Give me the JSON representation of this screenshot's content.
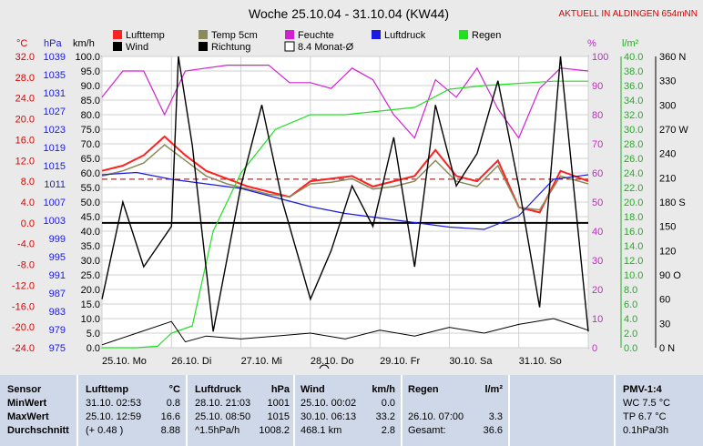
{
  "header": {
    "title": "Woche 25.10.04 - 31.10.04 (KW44)",
    "live": "AKTUELL IN ALDINGEN 654mNN"
  },
  "colors": {
    "lufttemp": "#ff2020",
    "temp5cm": "#8a8a5a",
    "feuchte": "#d020d0",
    "luftdruck": "#1a1ae0",
    "regen": "#20e020",
    "wind": "#000000",
    "richtung": "#000000",
    "monat": "#8b0000"
  },
  "chart_data": {
    "type": "line",
    "title": "Woche 25.10.04 - 31.10.04 (KW44)",
    "x_days": [
      "25.10. Mo",
      "26.10. Di",
      "27.10. Mi",
      "28.10. Do",
      "29.10. Fr",
      "30.10. Sa",
      "31.10. So"
    ],
    "legend": [
      "Lufttemp",
      "Wind",
      "Temp 5cm",
      "Richtung",
      "Feuchte",
      "8.4 Monat-Ø",
      "Luftdruck",
      "Regen"
    ],
    "axes": {
      "temp": {
        "unit": "°C",
        "range": [
          -24,
          32
        ],
        "ticks": [
          "32.0",
          "28.0",
          "24.0",
          "20.0",
          "16.0",
          "12.0",
          "8.0",
          "4.0",
          "0.0",
          "-4.0",
          "-8.0",
          "-12.0",
          "-16.0",
          "-20.0",
          "-24.0"
        ]
      },
      "pressure": {
        "unit": "hPa",
        "range": [
          975,
          1039
        ],
        "ticks": [
          "1039",
          "1035",
          "1031",
          "1027",
          "1023",
          "1019",
          "1015",
          "1011",
          "1007",
          "1003",
          "999",
          "995",
          "991",
          "987",
          "983",
          "979",
          "975"
        ]
      },
      "wind": {
        "unit": "km/h",
        "range": [
          0,
          100
        ],
        "ticks": [
          "100.0",
          "95.0",
          "90.0",
          "85.0",
          "80.0",
          "75.0",
          "70.0",
          "65.0",
          "60.0",
          "55.0",
          "50.0",
          "45.0",
          "40.0",
          "35.0",
          "30.0",
          "25.0",
          "20.0",
          "15.0",
          "10.0",
          "5.0",
          "0.0"
        ]
      },
      "humidity": {
        "unit": "%",
        "range": [
          0,
          100
        ],
        "ticks": [
          "100",
          "90",
          "80",
          "70",
          "60",
          "50",
          "40",
          "30",
          "20",
          "10",
          "0"
        ]
      },
      "rain": {
        "unit": "l/m²",
        "range": [
          0,
          40
        ],
        "ticks": [
          "40.0",
          "38.0",
          "36.0",
          "34.0",
          "32.0",
          "30.0",
          "28.0",
          "26.0",
          "24.0",
          "22.0",
          "20.0",
          "18.0",
          "16.0",
          "14.0",
          "12.0",
          "10.0",
          "8.0",
          "6.0",
          "4.0",
          "2.0",
          "0.0"
        ]
      },
      "direction": {
        "range": [
          0,
          360
        ],
        "ticks": [
          "360 N",
          "330",
          "300",
          "270 W",
          "240",
          "210",
          "180 S",
          "150",
          "120",
          "90 O",
          "60",
          "30",
          "0 N"
        ]
      }
    },
    "monthly_mean_temp": 8.4,
    "series": [
      {
        "name": "Lufttemp",
        "axis": "temp",
        "x": [
          0,
          0.3,
          0.6,
          0.9,
          1.2,
          1.5,
          1.8,
          2.1,
          2.4,
          2.7,
          3,
          3.3,
          3.6,
          3.9,
          4.2,
          4.5,
          4.8,
          5.1,
          5.4,
          5.7,
          6,
          6.3,
          6.6,
          7
        ],
        "y": [
          10,
          11,
          13,
          16.6,
          13,
          10,
          8.5,
          7,
          6,
          5,
          8,
          8.5,
          9,
          7,
          8,
          9,
          14,
          9,
          8,
          12,
          3,
          2,
          10,
          8
        ]
      },
      {
        "name": "Temp 5cm",
        "axis": "temp",
        "x": [
          0,
          0.3,
          0.6,
          0.9,
          1.2,
          1.5,
          1.8,
          2.1,
          2.4,
          2.7,
          3,
          3.3,
          3.6,
          3.9,
          4.2,
          4.5,
          4.8,
          5.1,
          5.4,
          5.7,
          6,
          6.3,
          6.6,
          7
        ],
        "y": [
          9,
          10,
          11.5,
          15,
          12,
          9,
          7.5,
          6.5,
          5.5,
          5,
          7.5,
          7.8,
          8.5,
          6.5,
          7,
          8,
          12,
          8,
          7,
          11,
          3,
          2.5,
          9,
          7.5
        ]
      },
      {
        "name": "Feuchte",
        "axis": "humidity",
        "x": [
          0,
          0.3,
          0.6,
          0.9,
          1.2,
          1.5,
          1.8,
          2.1,
          2.4,
          2.7,
          3,
          3.3,
          3.6,
          3.9,
          4.2,
          4.5,
          4.8,
          5.1,
          5.4,
          5.7,
          6,
          6.3,
          6.6,
          7
        ],
        "y": [
          86,
          95,
          95,
          80,
          95,
          96,
          97,
          97,
          97,
          91,
          91,
          89,
          96,
          92,
          80,
          72,
          92,
          86,
          96,
          82,
          72,
          89,
          96,
          95
        ]
      },
      {
        "name": "Luftdruck",
        "axis": "pressure",
        "x": [
          0,
          0.5,
          1,
          1.5,
          2,
          2.5,
          3,
          3.5,
          4,
          4.5,
          5,
          5.5,
          6,
          6.5,
          7
        ],
        "y": [
          1013,
          1013.5,
          1012,
          1011,
          1010,
          1008,
          1006,
          1004.5,
          1003.5,
          1002.5,
          1001.5,
          1001,
          1004,
          1012,
          1013
        ]
      },
      {
        "name": "Regen",
        "axis": "rain",
        "x": [
          0,
          0.5,
          0.8,
          1,
          1.3,
          1.6,
          2,
          2.5,
          3,
          3.5,
          4,
          4.5,
          5,
          5.5,
          6,
          6.5,
          7
        ],
        "y": [
          0,
          0,
          0.2,
          2,
          3,
          16,
          24,
          30,
          32,
          32,
          32.5,
          33,
          35.5,
          36,
          36.3,
          36.6,
          36.6
        ]
      },
      {
        "name": "Wind",
        "axis": "wind",
        "x": [
          0,
          0.5,
          1,
          1.2,
          1.5,
          2,
          2.5,
          3,
          3.5,
          4,
          4.5,
          5,
          5.5,
          6,
          6.5,
          7
        ],
        "y": [
          1,
          5,
          9,
          2,
          4,
          3,
          4,
          5,
          3,
          6,
          4,
          7,
          5,
          8,
          10,
          6
        ]
      },
      {
        "name": "Richtung",
        "axis": "direction",
        "x": [
          0,
          0.3,
          0.6,
          1,
          1.1,
          1.3,
          1.6,
          2,
          2.3,
          2.6,
          3,
          3.3,
          3.6,
          3.9,
          4.2,
          4.5,
          4.8,
          5.1,
          5.4,
          5.7,
          6,
          6.3,
          6.6,
          7
        ],
        "y": [
          60,
          180,
          100,
          150,
          360,
          250,
          20,
          200,
          300,
          180,
          60,
          120,
          200,
          150,
          260,
          100,
          300,
          200,
          240,
          330,
          200,
          50,
          360,
          20
        ]
      }
    ]
  },
  "stats": {
    "sensor": {
      "header": "Sensor",
      "labels": [
        "MinWert",
        "MaxWert",
        "Durchschnitt"
      ]
    },
    "lufttemp": {
      "header": "Lufttemp",
      "unit": "°C",
      "rows": [
        [
          "31.10.  02:53",
          "0.8"
        ],
        [
          "25.10.  12:59",
          "16.6"
        ],
        [
          "(+ 0.48 )",
          "8.88"
        ]
      ]
    },
    "luftdruck": {
      "header": "Luftdruck",
      "unit": "hPa",
      "rows": [
        [
          "28.10.  21:03",
          "1001"
        ],
        [
          "25.10.  08:50",
          "1015"
        ],
        [
          "^1.5hPa/h",
          "1008.2"
        ]
      ]
    },
    "wind": {
      "header": "Wind",
      "unit": "km/h",
      "rows": [
        [
          "25.10.  00:02",
          "0.0"
        ],
        [
          "30.10.  06:13",
          "33.2"
        ],
        [
          "468.1 km",
          "2.8"
        ]
      ]
    },
    "regen": {
      "header": "Regen",
      "unit": "l/m²",
      "rows": [
        [
          "",
          ""
        ],
        [
          "26.10.  07:00",
          "3.3"
        ],
        [
          "Gesamt:",
          "36.6"
        ]
      ]
    },
    "pmv": {
      "header": "PMV-1:4",
      "rows": [
        "WC 7.5 °C",
        "TP 6.7 °C",
        "0.1hPa/3h"
      ]
    }
  }
}
